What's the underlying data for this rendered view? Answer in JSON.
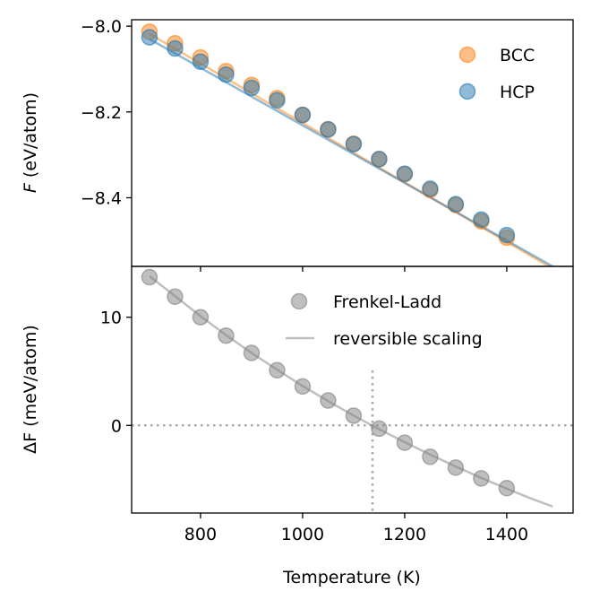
{
  "chart_data": [
    {
      "type": "scatter",
      "panel": "top",
      "ylabel_symbol": "F",
      "ylabel_unit": " (eV/atom)",
      "xlim": [
        665,
        1530
      ],
      "ylim": [
        -8.56,
        -7.985
      ],
      "y_ticks": [
        -8.0,
        -8.2,
        -8.4
      ],
      "y_tick_labels": [
        "−8.0",
        "−8.2",
        "−8.4"
      ],
      "x_ticks": [
        800,
        1000,
        1200,
        1400
      ],
      "legend_position": "top-right",
      "series": [
        {
          "name": "BCC",
          "color": "#ff7f0e",
          "points": {
            "x": [
              700,
              750,
              800,
              850,
              900,
              950,
              1000,
              1050,
              1100,
              1150,
              1200,
              1250,
              1300,
              1350,
              1400
            ],
            "y": [
              -8.013,
              -8.04,
              -8.073,
              -8.105,
              -8.137,
              -8.168,
              -8.207,
              -8.24,
              -8.274,
              -8.31,
              -8.345,
              -8.382,
              -8.417,
              -8.455,
              -8.493
            ]
          },
          "line": {
            "x": [
              700,
              1490
            ],
            "y": [
              -8.018,
              -8.565
            ]
          }
        },
        {
          "name": "HCP",
          "color": "#1f77b4",
          "points": {
            "x": [
              700,
              750,
              800,
              850,
              900,
              950,
              1000,
              1050,
              1100,
              1150,
              1200,
              1250,
              1300,
              1350,
              1400
            ],
            "y": [
              -8.026,
              -8.052,
              -8.083,
              -8.113,
              -8.144,
              -8.173,
              -8.207,
              -8.241,
              -8.275,
              -8.31,
              -8.344,
              -8.379,
              -8.415,
              -8.451,
              -8.487
            ]
          },
          "line": {
            "x": [
              700,
              1490
            ],
            "y": [
              -8.03,
              -8.56
            ]
          }
        }
      ]
    },
    {
      "type": "scatter",
      "panel": "bottom",
      "xlabel": "Temperature (K)",
      "ylabel_symbol": "ΔF",
      "ylabel_unit": " (meV/atom)",
      "xlim": [
        665,
        1530
      ],
      "ylim": [
        -8.1,
        14.7
      ],
      "y_ticks": [
        0,
        10
      ],
      "y_tick_labels": [
        "0",
        "10"
      ],
      "x_ticks": [
        800,
        1000,
        1200,
        1400
      ],
      "x_tick_labels": [
        "800",
        "1000",
        "1200",
        "1400"
      ],
      "legend_position": "top-right",
      "crossing_temperature": 1137,
      "series": [
        {
          "name": "Frenkel-Ladd",
          "color": "#808080",
          "points": {
            "x": [
              700,
              750,
              800,
              850,
              900,
              950,
              1000,
              1050,
              1100,
              1150,
              1200,
              1250,
              1300,
              1350,
              1400
            ],
            "y": [
              13.7,
              11.9,
              10.0,
              8.3,
              6.7,
              5.1,
              3.6,
              2.3,
              0.9,
              -0.3,
              -1.6,
              -2.9,
              -3.9,
              -4.9,
              -5.8
            ]
          }
        },
        {
          "name": "reversible scaling",
          "color": "#808080",
          "line": {
            "x": [
              700,
              750,
              800,
              850,
              900,
              950,
              1000,
              1050,
              1100,
              1150,
              1200,
              1250,
              1300,
              1350,
              1400,
              1450,
              1490
            ],
            "y": [
              13.8,
              11.95,
              10.1,
              8.35,
              6.7,
              5.15,
              3.65,
              2.25,
              0.9,
              -0.35,
              -1.55,
              -2.7,
              -3.8,
              -4.85,
              -5.85,
              -6.8,
              -7.5
            ]
          }
        }
      ]
    }
  ]
}
